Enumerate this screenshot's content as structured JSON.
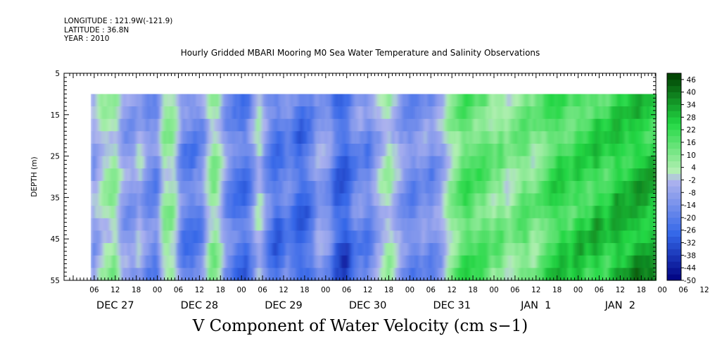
{
  "header": {
    "longitude": "LONGITUDE : 121.9W(-121.9)",
    "latitude": "LATITUDE : 36.8N",
    "year": "YEAR : 2010"
  },
  "chart_data": {
    "type": "heatmap",
    "title": "Hourly Gridded MBARI Mooring M0 Sea Water Temperature and Salinity Observations",
    "xlabel": "V Component of Water Velocity (cm s−1)",
    "ylabel": "DEPTH (m)",
    "y_axis": {
      "range": [
        5,
        55
      ],
      "inverted": true,
      "tick_labels": [
        "5",
        "15",
        "25",
        "35",
        "45",
        "55"
      ],
      "tick_values": [
        5,
        15,
        25,
        35,
        45,
        55
      ]
    },
    "x_axis": {
      "hour_tick_labels": [
        "06",
        "12",
        "18",
        "00",
        "06",
        "12",
        "18",
        "00",
        "06",
        "12",
        "18",
        "00",
        "06",
        "12",
        "18",
        "00",
        "06",
        "12",
        "18",
        "00",
        "06",
        "12",
        "18",
        "00",
        "06",
        "12",
        "18",
        "00",
        "06",
        "12",
        "18",
        "00"
      ],
      "date_labels": [
        "DEC 27",
        "DEC 28",
        "DEC 29",
        "DEC 30",
        "DEC 31",
        "JAN  1",
        "JAN  2"
      ]
    },
    "data_depth_range": [
      10,
      55
    ],
    "colorbar": {
      "labels": [
        "46",
        "40",
        "34",
        "28",
        "22",
        "16",
        "10",
        "4",
        "-2",
        "-8",
        "-14",
        "-20",
        "-26",
        "-32",
        "-38",
        "-44",
        "-50"
      ],
      "levels": [
        -50,
        -47,
        -44,
        -41,
        -38,
        -35,
        -32,
        -29,
        -26,
        -23,
        -20,
        -17,
        -14,
        -11,
        -8,
        -5,
        -2,
        1,
        4,
        7,
        10,
        13,
        16,
        19,
        22,
        25,
        28,
        31,
        34,
        37,
        40,
        43,
        46,
        49
      ]
    },
    "column_profile": [
      [
        "DEC 27 05:00",
        -12
      ],
      [
        "DEC 27 07:00",
        -4
      ],
      [
        "DEC 27 09:00",
        3
      ],
      [
        "DEC 27 12:00",
        6
      ],
      [
        "DEC 27 14:00",
        -8
      ],
      [
        "DEC 27 17:00",
        -12
      ],
      [
        "DEC 27 19:00",
        -3
      ],
      [
        "DEC 27 21:00",
        -14
      ],
      [
        "DEC 28 00:00",
        -16
      ],
      [
        "DEC 28 02:00",
        8
      ],
      [
        "DEC 28 05:00",
        4
      ],
      [
        "DEC 28 07:00",
        -18
      ],
      [
        "DEC 28 10:00",
        -20
      ],
      [
        "DEC 28 13:00",
        -15
      ],
      [
        "DEC 28 15:00",
        5
      ],
      [
        "DEC 28 17:00",
        8
      ],
      [
        "DEC 28 19:00",
        -10
      ],
      [
        "DEC 28 22:00",
        -20
      ],
      [
        "DEC 29 01:00",
        -24
      ],
      [
        "DEC 29 03:00",
        -14
      ],
      [
        "DEC 29 05:00",
        2
      ],
      [
        "DEC 29 07:00",
        -14
      ],
      [
        "DEC 29 10:00",
        -26
      ],
      [
        "DEC 29 13:00",
        -16
      ],
      [
        "DEC 29 15:00",
        -22
      ],
      [
        "DEC 29 17:00",
        -28
      ],
      [
        "DEC 29 20:00",
        -20
      ],
      [
        "DEC 29 22:00",
        -8
      ],
      [
        "DEC 30 01:00",
        -12
      ],
      [
        "DEC 30 03:00",
        -26
      ],
      [
        "DEC 30 06:00",
        -30
      ],
      [
        "DEC 30 08:00",
        -18
      ],
      [
        "DEC 30 10:00",
        -14
      ],
      [
        "DEC 30 12:00",
        -20
      ],
      [
        "DEC 30 15:00",
        -6
      ],
      [
        "DEC 30 18:00",
        4
      ],
      [
        "DEC 30 20:00",
        -4
      ],
      [
        "DEC 30 22:00",
        -12
      ],
      [
        "DEC 31 01:00",
        -18
      ],
      [
        "DEC 31 04:00",
        -10
      ],
      [
        "DEC 31 06:00",
        -16
      ],
      [
        "DEC 31 09:00",
        -8
      ],
      [
        "DEC 31 11:00",
        4
      ],
      [
        "DEC 31 14:00",
        12
      ],
      [
        "DEC 31 16:00",
        20
      ],
      [
        "DEC 31 19:00",
        14
      ],
      [
        "DEC 31 21:00",
        18
      ],
      [
        "JAN  1 00:00",
        8
      ],
      [
        "JAN  1 02:00",
        14
      ],
      [
        "JAN  1 04:00",
        4
      ],
      [
        "JAN  1 06:00",
        10
      ],
      [
        "JAN  1 09:00",
        16
      ],
      [
        "JAN  1 11:00",
        8
      ],
      [
        "JAN  1 14:00",
        14
      ],
      [
        "JAN  1 16:00",
        20
      ],
      [
        "JAN  1 19:00",
        24
      ],
      [
        "JAN  1 22:00",
        18
      ],
      [
        "JAN  2 00:00",
        26
      ],
      [
        "JAN  2 03:00",
        20
      ],
      [
        "JAN  2 05:00",
        28
      ],
      [
        "JAN  2 08:00",
        22
      ],
      [
        "JAN  2 11:00",
        30
      ],
      [
        "JAN  2 14:00",
        26
      ],
      [
        "JAN  2 17:00",
        32
      ],
      [
        "JAN  2 20:00",
        28
      ],
      [
        "JAN  2 23:00",
        30
      ]
    ],
    "colors": {
      "negative_deep": "#000080",
      "negative_mid": "#3366e8",
      "negative_light": "#b0b4ee",
      "positive_light": "#b4f0b4",
      "positive_mid": "#22d844",
      "positive_deep": "#003c00"
    }
  }
}
